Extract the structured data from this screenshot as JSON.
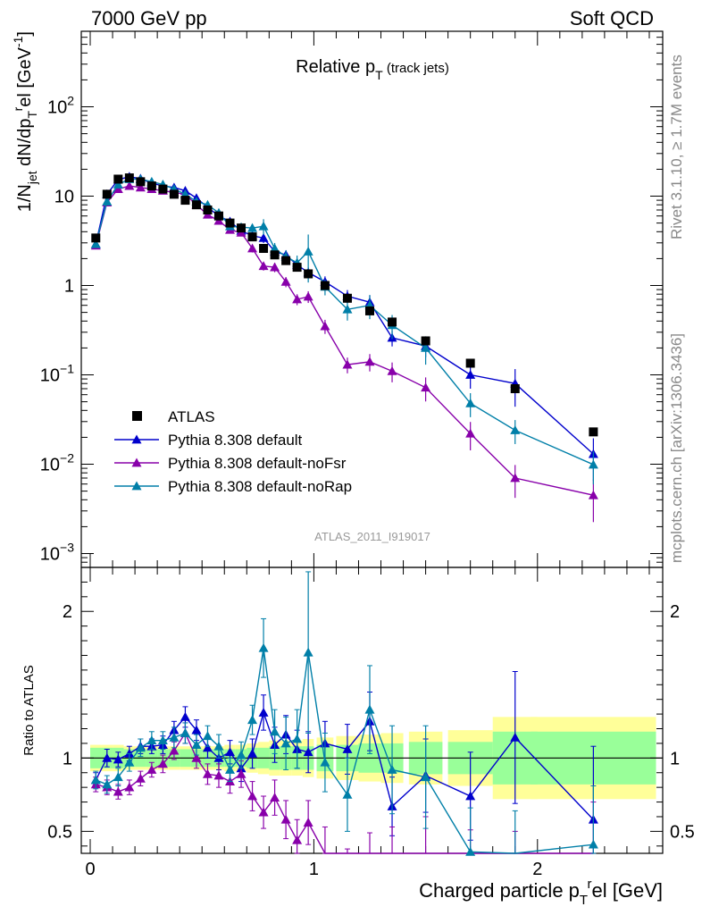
{
  "header": {
    "left": "7000 GeV pp",
    "right": "Soft QCD"
  },
  "side_text": {
    "rivet": "Rivet 3.1.10, ≥ 1.7M events",
    "mcplots": "mcplots.cern.ch [arXiv:1306.3436]"
  },
  "chart_data": {
    "type": "scatter",
    "title": "Relative p",
    "title_sub": "T",
    "title_suffix": "(track jets)",
    "analysis_tag": "ATLAS_2011_I919017",
    "xlabel": "Charged particle p",
    "xlabel_sub": "T",
    "xlabel_sup": "r",
    "xlabel_suffix": "el [GeV]",
    "ylabel_main": "1/N",
    "ylabel_sub1": "jet",
    "ylabel_mid": " dN/dp",
    "ylabel_sub2": "T",
    "ylabel_sup": "r",
    "ylabel_end": "el [GeV",
    "ylabel_sup2": "-1",
    "ylabel_close": "]",
    "ratio_ylabel": "Ratio to ATLAS",
    "xlim": [
      -0.04,
      2.56
    ],
    "ylim": [
      0.0007,
      700
    ],
    "yscale": "log",
    "ratio_ylim": [
      0.35,
      2.3
    ],
    "x_ticks": [
      "0",
      "1",
      "2"
    ],
    "y_ticks": [
      {
        "mant": "10",
        "exp": "−3"
      },
      {
        "mant": "10",
        "exp": "−2"
      },
      {
        "mant": "10",
        "exp": "−1"
      },
      {
        "mant": "1",
        "exp": ""
      },
      {
        "mant": "10",
        "exp": ""
      },
      {
        "mant": "10",
        "exp": "2"
      }
    ],
    "ratio_ticks": [
      "0.5",
      "1",
      "2"
    ],
    "legend_position": "lower-left",
    "x": [
      0.025,
      0.075,
      0.125,
      0.175,
      0.225,
      0.275,
      0.325,
      0.375,
      0.425,
      0.475,
      0.525,
      0.575,
      0.625,
      0.675,
      0.725,
      0.775,
      0.825,
      0.875,
      0.925,
      0.975,
      1.05,
      1.15,
      1.25,
      1.35,
      1.5,
      1.7,
      1.9,
      2.25
    ],
    "series": [
      {
        "name": "ATLAS",
        "color": "#000000",
        "marker": "square",
        "values": [
          3.4,
          10.5,
          15.5,
          16,
          14.5,
          13,
          12,
          10.5,
          9,
          8,
          7,
          6,
          5,
          4.4,
          3.5,
          2.6,
          2.2,
          1.9,
          1.6,
          1.35,
          1.0,
          0.72,
          0.52,
          0.39,
          0.24,
          0.135,
          0.07,
          0.023
        ],
        "ratio_band": [
          0.07,
          0.07,
          0.07,
          0.06,
          0.06,
          0.06,
          0.06,
          0.06,
          0.06,
          0.06,
          0.06,
          0.06,
          0.06,
          0.06,
          0.07,
          0.07,
          0.08,
          0.08,
          0.08,
          0.08,
          0.09,
          0.09,
          0.1,
          0.1,
          0.11,
          0.11,
          0.18,
          0.18
        ],
        "ratio_band_outer": [
          0.09,
          0.09,
          0.09,
          0.08,
          0.08,
          0.08,
          0.08,
          0.08,
          0.08,
          0.08,
          0.08,
          0.08,
          0.09,
          0.09,
          0.1,
          0.11,
          0.12,
          0.12,
          0.12,
          0.13,
          0.14,
          0.15,
          0.16,
          0.17,
          0.18,
          0.19,
          0.28,
          0.28
        ]
      },
      {
        "name": "Pythia 8.308 default",
        "color": "#0000cc",
        "marker": "triangle",
        "values": [
          2.9,
          10.5,
          15.3,
          16.5,
          15.7,
          14,
          13,
          12.5,
          11.5,
          9.5,
          7.5,
          6,
          5.2,
          4.1,
          3.6,
          3.4,
          2.4,
          2.2,
          1.7,
          1.4,
          1.1,
          0.76,
          0.65,
          0.26,
          0.21,
          0.1,
          0.08,
          0.013
        ],
        "ratio": [
          0.85,
          1.0,
          0.99,
          1.03,
          1.08,
          1.08,
          1.09,
          1.19,
          1.28,
          1.19,
          1.07,
          1.0,
          1.04,
          0.93,
          1.03,
          1.31,
          1.09,
          1.16,
          1.06,
          1.04,
          1.1,
          1.06,
          1.25,
          0.67,
          0.88,
          0.74,
          1.14,
          0.58
        ],
        "ratio_err": [
          0.05,
          0.06,
          0.05,
          0.05,
          0.05,
          0.05,
          0.06,
          0.06,
          0.07,
          0.07,
          0.07,
          0.08,
          0.08,
          0.09,
          0.1,
          0.12,
          0.12,
          0.13,
          0.13,
          0.14,
          0.15,
          0.17,
          0.2,
          0.2,
          0.25,
          0.3,
          0.45,
          0.5
        ]
      },
      {
        "name": "Pythia 8.308 default-noFsr",
        "color": "#8800aa",
        "marker": "triangle",
        "values": [
          2.8,
          8.5,
          12,
          13,
          12.5,
          12,
          11.5,
          11,
          10.5,
          8,
          6.2,
          5.3,
          4.2,
          3.9,
          2.6,
          1.65,
          1.6,
          1.1,
          0.7,
          0.75,
          0.35,
          0.13,
          0.14,
          0.11,
          0.072,
          0.022,
          0.007,
          0.0045
        ],
        "ratio": [
          0.82,
          0.8,
          0.77,
          0.8,
          0.86,
          0.92,
          0.96,
          1.05,
          1.17,
          1.0,
          0.89,
          0.88,
          0.84,
          0.89,
          0.74,
          0.63,
          0.73,
          0.58,
          0.44,
          0.56,
          0.35,
          0.18,
          0.27,
          0.28,
          0.3,
          0.16,
          0.1,
          0.2
        ],
        "ratio_err": [
          0.05,
          0.05,
          0.05,
          0.05,
          0.05,
          0.05,
          0.06,
          0.06,
          0.07,
          0.07,
          0.07,
          0.08,
          0.08,
          0.09,
          0.1,
          0.11,
          0.12,
          0.13,
          0.14,
          0.15,
          0.18,
          0.2,
          0.22,
          0.25,
          0.3,
          0.35,
          0.4,
          0.5
        ]
      },
      {
        "name": "Pythia 8.308 default-noRap",
        "color": "#007fa8",
        "marker": "triangle",
        "values": [
          2.9,
          8.7,
          13.5,
          15.5,
          15.5,
          14.5,
          13.5,
          12,
          10.5,
          8.7,
          8,
          6.5,
          4.6,
          4.5,
          4.4,
          4.6,
          2.6,
          2.1,
          1.8,
          2.4,
          0.97,
          0.54,
          0.6,
          0.36,
          0.2,
          0.048,
          0.024,
          0.0099
        ],
        "ratio": [
          0.85,
          0.82,
          0.87,
          0.97,
          1.07,
          1.12,
          1.12,
          1.14,
          1.17,
          1.09,
          1.15,
          1.08,
          0.92,
          1.02,
          1.26,
          1.75,
          1.18,
          1.1,
          1.13,
          1.72,
          0.97,
          0.75,
          1.33,
          0.92,
          0.87,
          0.36,
          0.34,
          0.41
        ],
        "ratio_err": [
          0.06,
          0.06,
          0.06,
          0.06,
          0.06,
          0.06,
          0.06,
          0.07,
          0.07,
          0.07,
          0.07,
          0.08,
          0.08,
          0.09,
          0.1,
          0.2,
          0.15,
          0.18,
          0.2,
          0.55,
          0.2,
          0.25,
          0.3,
          0.3,
          0.35,
          0.3,
          0.3,
          0.4
        ]
      }
    ]
  }
}
